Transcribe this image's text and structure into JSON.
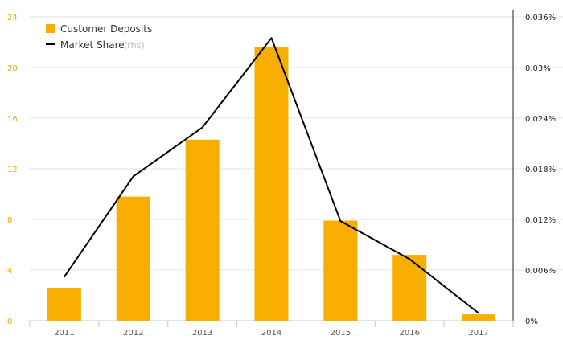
{
  "chart_data": {
    "type": "bar",
    "categories": [
      "2011",
      "2012",
      "2013",
      "2014",
      "2015",
      "2016",
      "2017"
    ],
    "series": [
      {
        "name": "Customer Deposits",
        "type": "bar",
        "axis": "left",
        "values": [
          2.6,
          9.8,
          14.3,
          21.6,
          7.9,
          5.2,
          0.5
        ]
      },
      {
        "name": "Market Share",
        "type": "line",
        "axis": "right",
        "values": [
          0.0052,
          0.0171,
          0.0229,
          0.0335,
          0.0118,
          0.0073,
          0.0009
        ]
      }
    ],
    "ylim_left": [
      0,
      24
    ],
    "yticks_left": [
      "0",
      "4",
      "8",
      "12",
      "16",
      "20",
      "24"
    ],
    "ylim_right": [
      0,
      0.036
    ],
    "yticks_right": [
      "0%",
      "0.006%",
      "0.012%",
      "0.018%",
      "0.024%",
      "0.03%",
      "0.036%"
    ],
    "legend": {
      "position": "top-left",
      "entries": [
        "Customer Deposits",
        "Market Share"
      ],
      "rhs_note": "(rhs)"
    },
    "grid": true,
    "colors": {
      "bar": "#f7ae00",
      "line": "#000000",
      "grid": "#e6e6e6",
      "left_tick": "#f2a900"
    }
  }
}
